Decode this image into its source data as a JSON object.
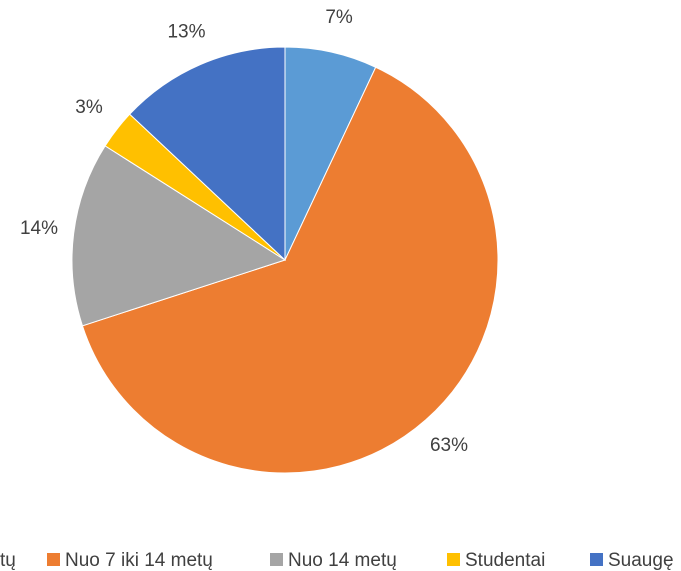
{
  "chart_data": {
    "type": "pie",
    "categories": [
      "tų",
      "Nuo 7 iki 14 metų",
      "Nuo 14 metų",
      "Studentai",
      "Suaugę"
    ],
    "values": [
      7,
      63,
      14,
      3,
      13
    ],
    "value_labels": [
      "7%",
      "63%",
      "14%",
      "3%",
      "13%"
    ],
    "colors": [
      "#5b9bd5",
      "#ed7d31",
      "#a5a5a5",
      "#ffc000",
      "#4472c4"
    ],
    "legend": "bottom"
  }
}
